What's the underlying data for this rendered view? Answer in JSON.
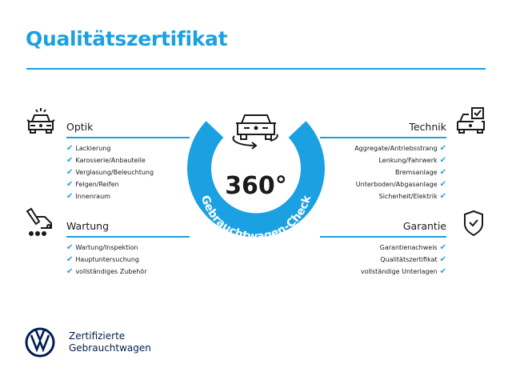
{
  "title": "Qualitätszertifikat",
  "center": {
    "degrees": "360°",
    "arc_text": "Gebrauchtwagen-Check"
  },
  "sections": {
    "optik": {
      "title": "Optik",
      "icon": "car-lights-icon",
      "items": [
        "Lackierung",
        "Karosserie/Anbauteile",
        "Verglasung/Beleuchtung",
        "Felgen/Reifen",
        "Innenraum"
      ]
    },
    "wartung": {
      "title": "Wartung",
      "icon": "maintenance-cart-icon",
      "items": [
        "Wartung/Inspektion",
        "Hauptuntersuchung",
        "vollständiges Zubehör"
      ]
    },
    "technik": {
      "title": "Technik",
      "icon": "car-checkbox-icon",
      "items": [
        "Aggregate/Antriebsstrang",
        "Lenkung/Fahrwerk",
        "Bremsanlage",
        "Unterboden/Abgasanlage",
        "Sicherheit/Elektrik"
      ]
    },
    "garantie": {
      "title": "Garantie",
      "icon": "shield-check-icon",
      "items": [
        "Garantienachweis",
        "Qualitätszertifikat",
        "vollständige Unterlagen"
      ]
    }
  },
  "check_mark": "✔",
  "brand": {
    "line1": "Zertifizierte",
    "line2": "Gebrauchtwagen",
    "logo": "VW"
  },
  "colors": {
    "accent": "#1ba1e2",
    "brand_navy": "#001e50",
    "text": "#1a1a1a"
  }
}
